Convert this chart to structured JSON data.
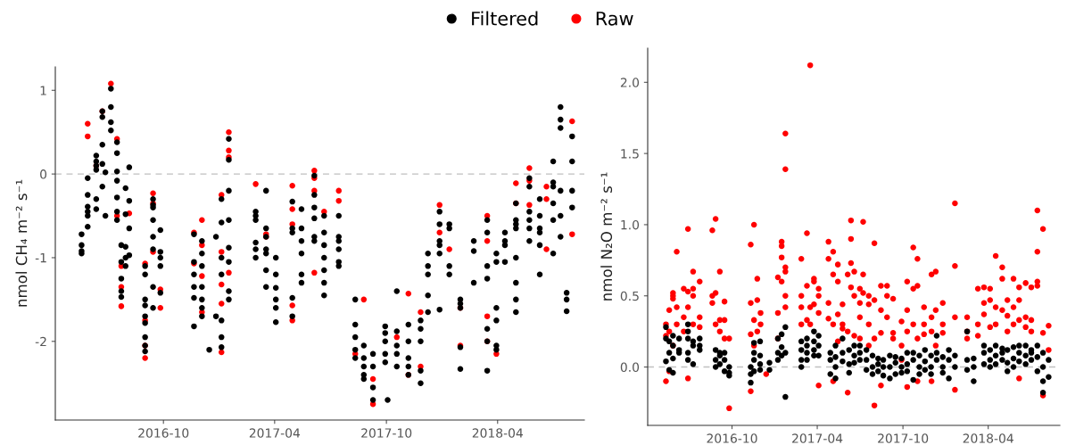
{
  "chart_data": [
    {
      "type": "scatter",
      "ylabel": "nmol CH₄ m⁻² s⁻¹",
      "legend": "top",
      "grid": false,
      "marker": "circle",
      "xlim": [
        "2016-04-07",
        "2018-08-21"
      ],
      "xticks": [
        "2016-10",
        "2017-04",
        "2017-10",
        "2018-04"
      ],
      "ylim": [
        -2.94,
        1.28
      ],
      "yticks": [
        -2,
        -1,
        0,
        1
      ],
      "ref_lines": [
        {
          "axis": "y",
          "value": 0,
          "color": "#c0c0c0",
          "line_style": "dashed"
        }
      ],
      "series": [
        {
          "name": "Filtered",
          "color": "#000000",
          "x": [
            "2016-05-20",
            "2016-05-20",
            "2016-05-20",
            "2016-05-20",
            "2016-05-30",
            "2016-05-30",
            "2016-05-30",
            "2016-05-30",
            "2016-05-30",
            "2016-05-30",
            "2016-06-13",
            "2016-06-13",
            "2016-06-13",
            "2016-06-13",
            "2016-06-13",
            "2016-06-13",
            "2016-06-23",
            "2016-06-23",
            "2016-06-23",
            "2016-06-23",
            "2016-06-23",
            "2016-06-28",
            "2016-06-28",
            "2016-07-07",
            "2016-07-07",
            "2016-07-07",
            "2016-07-07",
            "2016-07-17",
            "2016-07-17",
            "2016-07-17",
            "2016-07-17",
            "2016-07-17",
            "2016-07-17",
            "2016-07-17",
            "2016-07-24",
            "2016-07-24",
            "2016-07-24",
            "2016-07-24",
            "2016-07-24",
            "2016-07-31",
            "2016-07-31",
            "2016-07-31",
            "2016-07-31",
            "2016-07-31",
            "2016-08-06",
            "2016-08-06",
            "2016-08-06",
            "2016-08-06",
            "2016-09-01",
            "2016-09-01",
            "2016-09-01",
            "2016-09-01",
            "2016-09-01",
            "2016-09-01",
            "2016-09-01",
            "2016-09-01",
            "2016-09-01",
            "2016-09-14",
            "2016-09-14",
            "2016-09-14",
            "2016-09-14",
            "2016-09-14",
            "2016-09-14",
            "2016-09-14",
            "2016-09-14",
            "2016-09-26",
            "2016-09-26",
            "2016-09-26",
            "2016-09-26",
            "2016-09-26",
            "2016-11-20",
            "2016-11-20",
            "2016-11-20",
            "2016-11-20",
            "2016-11-20",
            "2016-11-20",
            "2016-12-03",
            "2016-12-03",
            "2016-12-03",
            "2016-12-03",
            "2016-12-03",
            "2016-12-03",
            "2016-12-03",
            "2016-12-15",
            "2016-12-26",
            "2016-12-26",
            "2017-01-04",
            "2017-01-04",
            "2017-01-04",
            "2017-01-04",
            "2017-01-04",
            "2017-01-04",
            "2017-01-04",
            "2017-01-16",
            "2017-01-16",
            "2017-01-16",
            "2017-01-16",
            "2017-01-16",
            "2017-01-16",
            "2017-01-16",
            "2017-01-16",
            "2017-03-01",
            "2017-03-01",
            "2017-03-01",
            "2017-03-01",
            "2017-03-01",
            "2017-03-01",
            "2017-03-18",
            "2017-03-18",
            "2017-03-18",
            "2017-03-18",
            "2017-03-18",
            "2017-03-18",
            "2017-03-18",
            "2017-04-03",
            "2017-04-03",
            "2017-04-03",
            "2017-04-03",
            "2017-04-03",
            "2017-04-03",
            "2017-04-30",
            "2017-04-30",
            "2017-04-30",
            "2017-04-30",
            "2017-04-30",
            "2017-05-15",
            "2017-05-15",
            "2017-05-15",
            "2017-05-15",
            "2017-05-15",
            "2017-05-15",
            "2017-06-05",
            "2017-06-05",
            "2017-06-05",
            "2017-06-05",
            "2017-06-05",
            "2017-06-05",
            "2017-06-21",
            "2017-06-21",
            "2017-06-21",
            "2017-06-21",
            "2017-06-21",
            "2017-06-21",
            "2017-06-21",
            "2017-07-15",
            "2017-07-15",
            "2017-07-15",
            "2017-07-15",
            "2017-07-15",
            "2017-07-15",
            "2017-08-11",
            "2017-08-11",
            "2017-08-11",
            "2017-08-11",
            "2017-08-11",
            "2017-08-25",
            "2017-08-25",
            "2017-08-25",
            "2017-08-25",
            "2017-08-25",
            "2017-09-09",
            "2017-09-09",
            "2017-09-09",
            "2017-09-09",
            "2017-09-29",
            "2017-09-29",
            "2017-09-29",
            "2017-09-29",
            "2017-09-29",
            "2017-10-03",
            "2017-10-18",
            "2017-10-18",
            "2017-10-18",
            "2017-10-18",
            "2017-10-18",
            "2017-11-06",
            "2017-11-06",
            "2017-11-06",
            "2017-11-06",
            "2017-11-06",
            "2017-11-26",
            "2017-11-26",
            "2017-11-26",
            "2017-11-26",
            "2017-11-26",
            "2017-12-08",
            "2017-12-08",
            "2017-12-08",
            "2017-12-08",
            "2017-12-08",
            "2017-12-27",
            "2017-12-27",
            "2017-12-27",
            "2017-12-27",
            "2017-12-27",
            "2017-12-27",
            "2018-01-12",
            "2018-01-12",
            "2018-01-12",
            "2018-01-12",
            "2018-01-30",
            "2018-01-30",
            "2018-01-30",
            "2018-01-30",
            "2018-01-30",
            "2018-02-21",
            "2018-02-21",
            "2018-02-21",
            "2018-03-15",
            "2018-03-15",
            "2018-03-15",
            "2018-03-15",
            "2018-03-15",
            "2018-03-15",
            "2018-03-15",
            "2018-03-30",
            "2018-03-30",
            "2018-03-30",
            "2018-03-30",
            "2018-03-30",
            "2018-03-30",
            "2018-04-13",
            "2018-04-13",
            "2018-04-13",
            "2018-04-13",
            "2018-05-01",
            "2018-05-01",
            "2018-05-01",
            "2018-05-01",
            "2018-05-01",
            "2018-05-01",
            "2018-05-01",
            "2018-05-01",
            "2018-05-23",
            "2018-05-23",
            "2018-05-23",
            "2018-05-23",
            "2018-05-23",
            "2018-05-23",
            "2018-06-09",
            "2018-06-09",
            "2018-06-09",
            "2018-06-09",
            "2018-06-09",
            "2018-06-09",
            "2018-07-01",
            "2018-07-01",
            "2018-07-01",
            "2018-07-01",
            "2018-07-01",
            "2018-07-01",
            "2018-07-13",
            "2018-07-13",
            "2018-07-13",
            "2018-07-13",
            "2018-07-13",
            "2018-07-13",
            "2018-07-23",
            "2018-07-23",
            "2018-07-23",
            "2018-08-01",
            "2018-08-01",
            "2018-08-01",
            "2018-08-01"
          ],
          "values": [
            -0.72,
            -0.95,
            -0.85,
            -0.92,
            -0.39,
            -0.25,
            -0.5,
            -0.63,
            -0.05,
            -0.45,
            0.22,
            -0.3,
            0.05,
            -0.42,
            0.15,
            0.1,
            0.75,
            0.68,
            0.35,
            0.12,
            -0.15,
            0.02,
            -0.5,
            1.02,
            0.8,
            0.62,
            0.52,
            0.38,
            0.25,
            -0.28,
            -0.55,
            0.03,
            -0.08,
            -0.45,
            -0.85,
            -1.05,
            -1.4,
            -1.47,
            -1.25,
            -1.0,
            -1.1,
            -0.17,
            -0.48,
            -0.87,
            0.08,
            -0.32,
            -0.65,
            -0.97,
            -1.1,
            -1.2,
            -1.5,
            -1.57,
            -1.7,
            -1.78,
            -1.95,
            -2.05,
            -2.12,
            -0.3,
            -0.37,
            -0.4,
            -0.55,
            -0.9,
            -1.35,
            -1.6,
            -0.75,
            -0.67,
            -0.93,
            -1.0,
            -1.1,
            -1.42,
            -0.72,
            -1.2,
            -1.35,
            -1.48,
            -1.82,
            -1.05,
            -0.95,
            -1.1,
            -1.35,
            -1.5,
            -1.6,
            -1.7,
            -0.8,
            -2.1,
            -0.75,
            -1.7,
            -0.3,
            -0.58,
            -1.0,
            -1.2,
            -1.75,
            -1.95,
            -2.07,
            0.42,
            0.17,
            -0.2,
            -0.55,
            -0.88,
            -1.05,
            -1.4,
            -1.5,
            -0.45,
            -0.5,
            -0.55,
            -0.9,
            -1.0,
            -0.82,
            -0.2,
            -0.65,
            -0.75,
            -0.9,
            -1.15,
            -1.35,
            -0.95,
            -1.2,
            -1.0,
            -1.5,
            -1.6,
            -1.77,
            -1.36,
            -0.33,
            -0.65,
            -0.7,
            -1.48,
            -1.7,
            -0.65,
            -0.8,
            -0.95,
            -1.2,
            -1.3,
            -0.42,
            -0.02,
            -0.25,
            -0.4,
            -0.75,
            -0.8,
            -0.53,
            -0.5,
            -0.7,
            -0.85,
            -1.0,
            -1.15,
            -1.3,
            -1.45,
            -0.5,
            -0.75,
            -0.8,
            -0.9,
            -1.05,
            -1.1,
            -1.5,
            -1.8,
            -1.95,
            -2.1,
            -2.2,
            -2.05,
            -2.2,
            -2.3,
            -2.45,
            -2.4,
            -2.55,
            -2.7,
            -2.3,
            -2.15,
            -1.82,
            -1.9,
            -2.15,
            -2.25,
            -2.0,
            -2.7,
            -1.4,
            -2.05,
            -2.15,
            -2.3,
            -1.88,
            -1.8,
            -2.0,
            -2.2,
            -2.3,
            -2.4,
            -1.85,
            -2.0,
            -2.35,
            -2.5,
            -1.75,
            -1.2,
            -1.45,
            -1.65,
            -1.1,
            -0.95,
            -0.6,
            -0.8,
            -0.85,
            -0.95,
            -0.45,
            -1.62,
            -1.1,
            -1.2,
            -0.65,
            -0.6,
            -1.5,
            -1.55,
            -1.6,
            -2.07,
            -2.33,
            -0.8,
            -0.92,
            -1.3,
            -0.55,
            -0.7,
            -1.1,
            -1.25,
            -1.85,
            -2.0,
            -2.35,
            -1.6,
            -1.75,
            -2.05,
            -2.1,
            -0.95,
            -1.05,
            -0.8,
            -0.7,
            -0.85,
            -1.05,
            -0.35,
            -0.55,
            -0.6,
            -0.65,
            -1.0,
            -1.3,
            -1.5,
            -1.65,
            -0.05,
            -0.15,
            -0.45,
            -0.55,
            -0.65,
            -0.8,
            -0.3,
            -0.5,
            -0.65,
            -0.7,
            -0.85,
            -1.2,
            -0.1,
            -0.15,
            -0.55,
            -0.35,
            0.15,
            -0.95,
            0.8,
            0.65,
            0.55,
            -0.2,
            -0.5,
            -0.75,
            -1.42,
            -1.5,
            -1.64,
            -0.2,
            -0.4,
            0.15,
            0.45
          ]
        },
        {
          "name": "Raw",
          "color": "#ff0000",
          "x": [
            "2016-05-30",
            "2016-05-30",
            "2016-06-13",
            "2016-06-23",
            "2016-07-07",
            "2016-07-17",
            "2016-07-17",
            "2016-07-24",
            "2016-07-24",
            "2016-07-24",
            "2016-08-06",
            "2016-09-01",
            "2016-09-01",
            "2016-09-01",
            "2016-09-01",
            "2016-09-14",
            "2016-09-14",
            "2016-09-14",
            "2016-09-26",
            "2016-09-26",
            "2016-11-20",
            "2016-11-20",
            "2016-12-03",
            "2016-12-03",
            "2016-12-03",
            "2016-12-03",
            "2017-01-04",
            "2017-01-04",
            "2017-01-04",
            "2017-01-04",
            "2017-01-04",
            "2017-01-16",
            "2017-01-16",
            "2017-01-16",
            "2017-01-16",
            "2017-03-01",
            "2017-03-18",
            "2017-03-18",
            "2017-04-30",
            "2017-04-30",
            "2017-04-30",
            "2017-04-30",
            "2017-04-30",
            "2017-06-05",
            "2017-06-05",
            "2017-06-05",
            "2017-06-05",
            "2017-06-21",
            "2017-07-15",
            "2017-07-15",
            "2017-08-25",
            "2017-08-11",
            "2017-09-09",
            "2017-09-09",
            "2017-10-18",
            "2017-11-06",
            "2017-11-06",
            "2017-11-26",
            "2017-11-26",
            "2017-12-27",
            "2017-12-27",
            "2018-01-12",
            "2018-01-30",
            "2018-01-30",
            "2018-03-15",
            "2018-03-15",
            "2018-03-15",
            "2018-03-15",
            "2018-03-30",
            "2018-05-01",
            "2018-05-01",
            "2018-05-23",
            "2018-05-23",
            "2018-05-23",
            "2018-06-20",
            "2018-06-20",
            "2018-06-20",
            "2018-08-01",
            "2018-08-01"
          ],
          "values": [
            0.6,
            0.45,
            0.1,
            0.75,
            1.08,
            0.42,
            -0.5,
            -1.1,
            -1.35,
            -1.58,
            -0.47,
            -1.07,
            -1.75,
            -2.2,
            -2.05,
            -0.23,
            -0.35,
            -0.93,
            -1.38,
            -1.6,
            -0.7,
            -1.07,
            -0.85,
            -0.55,
            -1.22,
            -1.65,
            -0.25,
            -0.93,
            -1.32,
            -1.55,
            -2.13,
            0.5,
            0.28,
            0.2,
            -1.18,
            -0.12,
            -0.72,
            -0.75,
            -0.14,
            -0.42,
            -0.6,
            -1.57,
            -1.75,
            0.04,
            -0.05,
            -0.2,
            -1.18,
            -0.45,
            -0.32,
            -0.2,
            -1.5,
            -2.15,
            -2.45,
            -2.75,
            -1.95,
            -1.43,
            -2.4,
            -1.65,
            -2.3,
            -0.37,
            -0.7,
            -0.9,
            -1.6,
            -2.05,
            -0.5,
            -0.8,
            -1.7,
            -2.0,
            -2.15,
            -0.11,
            -0.35,
            0.07,
            -0.08,
            -0.37,
            -0.15,
            -0.3,
            -0.9,
            0.63,
            -0.72
          ]
        }
      ]
    },
    {
      "type": "scatter",
      "ylabel": "nmol N₂O m⁻² s⁻¹",
      "grid": false,
      "marker": "circle",
      "xlim": [
        "2016-04-04",
        "2018-09-01"
      ],
      "xticks": [
        "2016-10",
        "2017-04",
        "2017-10",
        "2018-04"
      ],
      "ylim": [
        -0.41,
        2.24
      ],
      "yticks": [
        {
          "value": 0,
          "label": "0.0"
        },
        {
          "value": 0.5,
          "label": "0.5"
        },
        {
          "value": 1,
          "label": "1.0"
        },
        {
          "value": 1.5,
          "label": "1.5"
        },
        {
          "value": 2,
          "label": "2.0"
        }
      ],
      "ref_lines": [
        {
          "axis": "y",
          "value": 0,
          "color": "#c0c0c0",
          "line_style": "dashed"
        }
      ],
      "series": [
        {
          "color": "#000000",
          "x": [
            "2016-05-13",
            "2016-05-13",
            "2016-05-13",
            "2016-05-20",
            "2016-05-20",
            "2016-05-20",
            "2016-05-28",
            "2016-05-28",
            "2016-05-28",
            "2016-05-28",
            "2016-06-10",
            "2016-06-10",
            "2016-06-10",
            "2016-06-29",
            "2016-06-29",
            "2016-06-29",
            "2016-06-29",
            "2016-06-29",
            "2016-07-10",
            "2016-07-10",
            "2016-07-10",
            "2016-07-24",
            "2016-07-24",
            "2016-07-24",
            "2016-08-27",
            "2016-08-27",
            "2016-08-27",
            "2016-09-05",
            "2016-09-05",
            "2016-09-05",
            "2016-09-15",
            "2016-09-15",
            "2016-09-15",
            "2016-09-25",
            "2016-09-25",
            "2016-09-25",
            "2016-11-10",
            "2016-11-10",
            "2016-11-10",
            "2016-11-17",
            "2016-11-17",
            "2016-11-17",
            "2016-11-17",
            "2016-11-30",
            "2016-11-30",
            "2016-11-30",
            "2016-11-30",
            "2016-12-20",
            "2016-12-20",
            "2017-01-07",
            "2017-01-07",
            "2017-01-07",
            "2017-01-15",
            "2017-01-15",
            "2017-01-15",
            "2017-01-23",
            "2017-01-23",
            "2017-01-23",
            "2017-02-26",
            "2017-02-26",
            "2017-02-26",
            "2017-02-26",
            "2017-03-10",
            "2017-03-10",
            "2017-03-10",
            "2017-03-10",
            "2017-03-25",
            "2017-03-25",
            "2017-03-25",
            "2017-03-25",
            "2017-04-04",
            "2017-04-04",
            "2017-04-04",
            "2017-04-29",
            "2017-04-29",
            "2017-04-29",
            "2017-05-10",
            "2017-05-10",
            "2017-05-10",
            "2017-05-10",
            "2017-05-25",
            "2017-05-25",
            "2017-05-25",
            "2017-06-08",
            "2017-06-08",
            "2017-06-08",
            "2017-06-19",
            "2017-06-19",
            "2017-06-19",
            "2017-07-01",
            "2017-07-01",
            "2017-07-01",
            "2017-07-15",
            "2017-07-15",
            "2017-07-15",
            "2017-07-28",
            "2017-07-28",
            "2017-07-28",
            "2017-08-09",
            "2017-08-09",
            "2017-08-09",
            "2017-08-20",
            "2017-08-20",
            "2017-08-20",
            "2017-09-03",
            "2017-09-03",
            "2017-09-03",
            "2017-09-15",
            "2017-09-15",
            "2017-09-15",
            "2017-09-28",
            "2017-09-28",
            "2017-09-28",
            "2017-10-10",
            "2017-10-10",
            "2017-10-10",
            "2017-10-23",
            "2017-10-23",
            "2017-10-23",
            "2017-11-05",
            "2017-11-05",
            "2017-11-05",
            "2017-11-17",
            "2017-11-17",
            "2017-11-17",
            "2017-11-30",
            "2017-11-30",
            "2017-11-30",
            "2017-12-12",
            "2017-12-12",
            "2017-12-12",
            "2017-12-25",
            "2017-12-25",
            "2017-12-25",
            "2018-01-07",
            "2018-01-07",
            "2018-01-07",
            "2018-01-20",
            "2018-01-20",
            "2018-02-15",
            "2018-02-15",
            "2018-02-15",
            "2018-03-01",
            "2018-03-01",
            "2018-03-01",
            "2018-03-23",
            "2018-03-23",
            "2018-03-23",
            "2018-04-05",
            "2018-04-05",
            "2018-04-05",
            "2018-04-17",
            "2018-04-17",
            "2018-04-17",
            "2018-05-01",
            "2018-05-01",
            "2018-05-01",
            "2018-05-12",
            "2018-05-12",
            "2018-05-12",
            "2018-05-25",
            "2018-05-25",
            "2018-05-25",
            "2018-06-06",
            "2018-06-06",
            "2018-06-06",
            "2018-06-20",
            "2018-06-20",
            "2018-06-20",
            "2018-07-02",
            "2018-07-02",
            "2018-07-02",
            "2018-07-15",
            "2018-07-15",
            "2018-07-15",
            "2018-07-27",
            "2018-07-27",
            "2018-07-27",
            "2018-07-27",
            "2018-08-08",
            "2018-08-08"
          ],
          "values": [
            0.04,
            0.2,
            0.28,
            0.1,
            -0.02,
            0.18,
            0.15,
            0.06,
            -0.04,
            0.22,
            0.12,
            0.2,
            0.1,
            0.3,
            0.2,
            0.1,
            0.05,
            0.25,
            0.15,
            0.02,
            0.18,
            0.2,
            0.12,
            0.15,
            0.12,
            0.05,
            0.0,
            0.1,
            0.02,
            0.08,
            0.05,
            -0.03,
            0.1,
            -0.06,
            0.0,
            -0.04,
            -0.05,
            0.0,
            -0.11,
            0.05,
            -0.03,
            0.1,
            0.17,
            0.08,
            0.02,
            -0.02,
            0.18,
            0.03,
            -0.02,
            0.2,
            0.1,
            0.05,
            0.23,
            0.14,
            0.08,
            0.28,
            0.1,
            -0.21,
            0.18,
            0.05,
            0.0,
            0.12,
            0.1,
            0.05,
            0.15,
            0.2,
            0.08,
            0.18,
            0.12,
            0.25,
            0.22,
            0.15,
            0.08,
            0.05,
            0.1,
            -0.05,
            0.0,
            0.15,
            0.07,
            -0.08,
            0.1,
            0.04,
            0.2,
            0.12,
            0.02,
            -0.04,
            0.15,
            0.08,
            0.03,
            0.1,
            0.15,
            0.05,
            0.05,
            0.12,
            -0.02,
            0.0,
            0.08,
            -0.05,
            0.02,
            -0.03,
            0.06,
            0.05,
            -0.06,
            0.0,
            0.0,
            0.08,
            -0.08,
            0.03,
            -0.05,
            0.07,
            0.0,
            0.06,
            -0.04,
            0.02,
            0.1,
            -0.03,
            0.05,
            -0.09,
            0.1,
            0.0,
            0.08,
            -0.05,
            0.04,
            0.12,
            -0.02,
            0.0,
            0.08,
            -0.05,
            0.1,
            0.22,
            0.05,
            0.0,
            0.07,
            -0.04,
            0.05,
            -0.08,
            0.12,
            0.0,
            0.08,
            0.25,
            0.05,
            -0.02,
            -0.1,
            0.06,
            0.0,
            0.1,
            0.02,
            0.15,
            0.05,
            0.12,
            0.0,
            0.15,
            0.08,
            0.02,
            0.1,
            0.05,
            0.13,
            0.12,
            0.03,
            -0.03,
            0.06,
            0.14,
            0.0,
            0.1,
            0.04,
            0.15,
            0.08,
            0.15,
            0.02,
            0.1,
            0.05,
            0.12,
            0.07,
            0.15,
            -0.03,
            0.0,
            -0.1,
            -0.18,
            0.1,
            -0.07,
            0.05
          ]
        },
        {
          "color": "#ff0000",
          "x": [
            "2016-05-13",
            "2016-05-13",
            "2016-05-13",
            "2016-05-20",
            "2016-05-20",
            "2016-05-20",
            "2016-05-28",
            "2016-05-28",
            "2016-05-28",
            "2016-05-28",
            "2016-06-05",
            "2016-06-05",
            "2016-06-05",
            "2016-06-20",
            "2016-06-20",
            "2016-06-20",
            "2016-06-29",
            "2016-06-29",
            "2016-06-29",
            "2016-06-29",
            "2016-07-10",
            "2016-07-10",
            "2016-07-10",
            "2016-07-10",
            "2016-07-24",
            "2016-07-24",
            "2016-07-24",
            "2016-08-20",
            "2016-08-20",
            "2016-08-20",
            "2016-08-27",
            "2016-08-27",
            "2016-08-27",
            "2016-09-05",
            "2016-09-05",
            "2016-09-05",
            "2016-09-15",
            "2016-09-15",
            "2016-09-15",
            "2016-09-25",
            "2016-09-25",
            "2016-11-10",
            "2016-11-10",
            "2016-11-10",
            "2016-11-10",
            "2016-11-17",
            "2016-11-17",
            "2016-11-17",
            "2016-11-24",
            "2016-11-24",
            "2016-11-24",
            "2016-12-01",
            "2016-12-01",
            "2016-12-13",
            "2017-01-07",
            "2017-01-07",
            "2017-01-07",
            "2017-01-15",
            "2017-01-15",
            "2017-01-15",
            "2017-01-15",
            "2017-01-23",
            "2017-01-23",
            "2017-01-23",
            "2017-01-23",
            "2017-01-23",
            "2017-01-23",
            "2017-02-26",
            "2017-02-26",
            "2017-02-26",
            "2017-02-26",
            "2017-03-10",
            "2017-03-10",
            "2017-03-10",
            "2017-03-17",
            "2017-03-17",
            "2017-03-17",
            "2017-03-25",
            "2017-03-25",
            "2017-03-25",
            "2017-04-04",
            "2017-04-04",
            "2017-04-04",
            "2017-04-04",
            "2017-04-25",
            "2017-04-25",
            "2017-04-25",
            "2017-04-25",
            "2017-05-05",
            "2017-05-05",
            "2017-05-05",
            "2017-05-05",
            "2017-05-15",
            "2017-05-15",
            "2017-05-15",
            "2017-05-15",
            "2017-05-25",
            "2017-05-25",
            "2017-05-25",
            "2017-06-05",
            "2017-06-05",
            "2017-06-05",
            "2017-06-12",
            "2017-06-12",
            "2017-06-12",
            "2017-06-12",
            "2017-06-19",
            "2017-06-19",
            "2017-06-19",
            "2017-07-01",
            "2017-07-01",
            "2017-07-01",
            "2017-07-01",
            "2017-07-08",
            "2017-07-08",
            "2017-07-08",
            "2017-07-20",
            "2017-07-20",
            "2017-07-20",
            "2017-07-20",
            "2017-08-01",
            "2017-08-01",
            "2017-08-01",
            "2017-08-01",
            "2017-08-15",
            "2017-08-15",
            "2017-08-15",
            "2017-08-15",
            "2017-08-28",
            "2017-08-28",
            "2017-08-28",
            "2017-09-10",
            "2017-09-10",
            "2017-09-10",
            "2017-09-28",
            "2017-09-28",
            "2017-09-28",
            "2017-10-10",
            "2017-10-10",
            "2017-10-10",
            "2017-10-10",
            "2017-10-23",
            "2017-10-23",
            "2017-10-23",
            "2017-11-01",
            "2017-11-01",
            "2017-11-01",
            "2017-11-01",
            "2017-11-15",
            "2017-11-15",
            "2017-11-15",
            "2017-12-01",
            "2017-12-01",
            "2017-12-01",
            "2017-12-01",
            "2017-12-10",
            "2017-12-10",
            "2017-12-10",
            "2017-12-25",
            "2017-12-25",
            "2017-12-25",
            "2018-01-20",
            "2018-01-20",
            "2018-01-20",
            "2018-01-20",
            "2018-02-15",
            "2018-02-15",
            "2018-02-15",
            "2018-03-10",
            "2018-03-10",
            "2018-03-10",
            "2018-03-23",
            "2018-03-23",
            "2018-03-23",
            "2018-04-05",
            "2018-04-05",
            "2018-04-05",
            "2018-04-17",
            "2018-04-17",
            "2018-04-17",
            "2018-05-01",
            "2018-05-01",
            "2018-05-01",
            "2018-05-12",
            "2018-05-12",
            "2018-05-12",
            "2018-05-25",
            "2018-05-25",
            "2018-05-25",
            "2018-06-06",
            "2018-06-06",
            "2018-06-06",
            "2018-06-06",
            "2018-06-20",
            "2018-06-20",
            "2018-06-20",
            "2018-07-02",
            "2018-07-02",
            "2018-07-02",
            "2018-07-15",
            "2018-07-15",
            "2018-07-15",
            "2018-07-15",
            "2018-07-27",
            "2018-07-27",
            "2018-07-27",
            "2018-08-08",
            "2018-08-08"
          ],
          "values": [
            0.3,
            -0.1,
            0.22,
            0.4,
            -0.03,
            0.25,
            0.48,
            0.15,
            0.5,
            0.52,
            0.81,
            0.42,
            0.3,
            0.35,
            0.25,
            0.55,
            0.97,
            0.42,
            0.53,
            -0.08,
            0.5,
            0.67,
            0.55,
            0.3,
            0.6,
            0.35,
            0.28,
            0.96,
            0.5,
            0.45,
            1.04,
            0.3,
            0.52,
            0.67,
            0.33,
            0.25,
            0.46,
            0.33,
            0.2,
            -0.29,
            0.2,
            0.86,
            0.45,
            0.23,
            -0.17,
            1.0,
            0.33,
            0.15,
            0.62,
            0.47,
            0.25,
            0.38,
            0.3,
            -0.05,
            0.63,
            0.38,
            0.2,
            0.88,
            0.85,
            0.77,
            0.6,
            1.64,
            1.39,
            0.7,
            0.5,
            0.42,
            0.67,
            0.76,
            0.5,
            0.3,
            0.42,
            0.94,
            0.57,
            0.33,
            2.12,
            0.42,
            0.3,
            0.6,
            0.44,
            0.62,
            0.55,
            0.5,
            0.38,
            -0.13,
            0.88,
            0.76,
            0.45,
            0.34,
            0.81,
            0.65,
            0.3,
            -0.1,
            0.72,
            0.6,
            0.37,
            0.18,
            0.44,
            0.3,
            0.27,
            0.65,
            0.25,
            -0.18,
            1.03,
            0.9,
            0.73,
            0.56,
            0.67,
            0.5,
            0.22,
            0.55,
            0.45,
            0.35,
            0.2,
            1.02,
            0.65,
            0.52,
            0.3,
            0.5,
            0.44,
            0.15,
            0.87,
            0.47,
            0.2,
            -0.27,
            0.57,
            0.4,
            0.24,
            -0.13,
            0.57,
            0.5,
            0.35,
            0.48,
            0.24,
            0.2,
            0.32,
            0.15,
            0.05,
            0.6,
            0.4,
            0.25,
            -0.14,
            0.84,
            0.55,
            0.3,
            0.76,
            0.57,
            0.2,
            -0.1,
            0.42,
            0.3,
            0.23,
            0.65,
            0.35,
            0.25,
            -0.1,
            0.67,
            0.4,
            0.15,
            0.45,
            0.3,
            0.24,
            1.15,
            0.71,
            0.35,
            -0.16,
            0.35,
            0.25,
            0.2,
            0.55,
            0.3,
            0.22,
            0.56,
            0.45,
            0.37,
            0.55,
            0.47,
            0.28,
            0.78,
            0.42,
            0.3,
            0.7,
            0.62,
            0.4,
            0.47,
            0.36,
            0.25,
            0.62,
            0.42,
            0.3,
            0.56,
            0.47,
            0.33,
            -0.08,
            0.59,
            0.35,
            0.28,
            0.56,
            0.33,
            0.25,
            1.1,
            0.81,
            0.57,
            0.6,
            0.97,
            0.24,
            -0.2,
            0.29,
            0.12
          ]
        }
      ]
    }
  ]
}
